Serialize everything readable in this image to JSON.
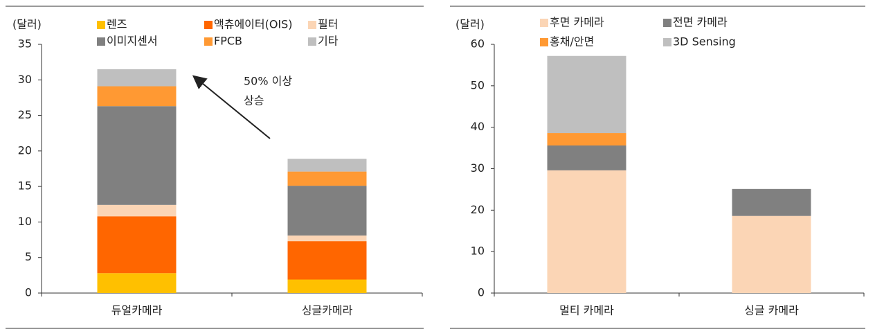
{
  "chart_data": [
    {
      "type": "bar",
      "stacked": true,
      "y_label": "(달러)",
      "categories": [
        "듀얼카메라",
        "싱글카메라"
      ],
      "series": [
        {
          "name": "렌즈",
          "color": "#ffc000",
          "values": [
            2.8,
            1.9
          ]
        },
        {
          "name": "액츄에이터(OIS)",
          "color": "#ff6600",
          "values": [
            8.0,
            5.4
          ]
        },
        {
          "name": "필터",
          "color": "#fbd5b5",
          "values": [
            1.6,
            0.8
          ]
        },
        {
          "name": "이미지센서",
          "color": "#808080",
          "values": [
            13.9,
            7.0
          ]
        },
        {
          "name": "FPCB",
          "color": "#ff9933",
          "values": [
            2.8,
            2.0
          ]
        },
        {
          "name": "기타",
          "color": "#bfbfbf",
          "values": [
            2.4,
            1.8
          ]
        }
      ],
      "ylim": [
        0,
        35
      ],
      "yticks": [
        0,
        5,
        10,
        15,
        20,
        25,
        30,
        35
      ],
      "annotation": [
        "50% 이상",
        "상승"
      ]
    },
    {
      "type": "bar",
      "stacked": true,
      "y_label": "(달러)",
      "categories": [
        "멀티 카메라",
        "싱글 카메라"
      ],
      "series": [
        {
          "name": "후면 카메라",
          "color": "#fbd5b5",
          "values": [
            29.6,
            18.6
          ]
        },
        {
          "name": "전면 카메라",
          "color": "#808080",
          "values": [
            6.0,
            6.5
          ]
        },
        {
          "name": "홍채/안면",
          "color": "#ff9933",
          "values": [
            3.0,
            0
          ]
        },
        {
          "name": "3D Sensing",
          "color": "#bfbfbf",
          "values": [
            18.6,
            0
          ]
        }
      ],
      "ylim": [
        0,
        60
      ],
      "yticks": [
        0,
        10,
        20,
        30,
        40,
        50,
        60
      ]
    }
  ]
}
